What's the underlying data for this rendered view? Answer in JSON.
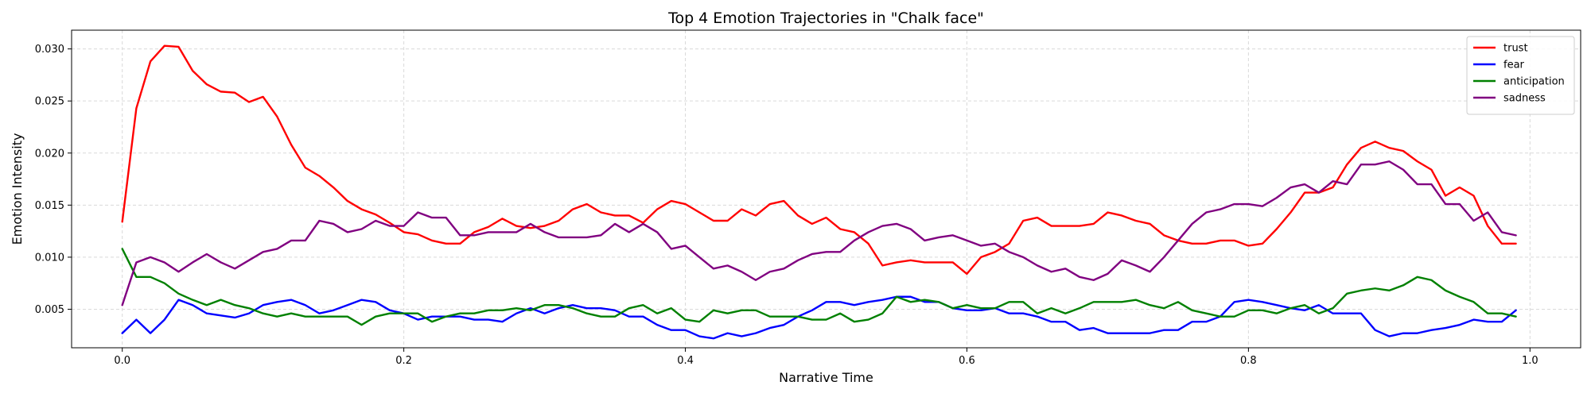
{
  "chart_data": {
    "type": "line",
    "title": "Top 4 Emotion Trajectories in \"Chalk face\"",
    "xlabel": "Narrative Time",
    "ylabel": "Emotion Intensity",
    "xlim": [
      -0.036,
      1.036
    ],
    "ylim": [
      0.0013,
      0.0318
    ],
    "xticks": [
      0.0,
      0.2,
      0.4,
      0.6,
      0.8,
      1.0
    ],
    "xtick_labels": [
      "0.0",
      "0.2",
      "0.4",
      "0.6",
      "0.8",
      "1.0"
    ],
    "yticks": [
      0.005,
      0.01,
      0.015,
      0.02,
      0.025,
      0.03
    ],
    "ytick_labels": [
      "0.005",
      "0.010",
      "0.015",
      "0.020",
      "0.025",
      "0.030"
    ],
    "grid": true,
    "legend_position": "top-right",
    "x": [
      0.0,
      0.01,
      0.02,
      0.03,
      0.04,
      0.05,
      0.06,
      0.07,
      0.08,
      0.09,
      0.1,
      0.11,
      0.12,
      0.13,
      0.14,
      0.15,
      0.16,
      0.17,
      0.18,
      0.19,
      0.2,
      0.21,
      0.22,
      0.23,
      0.24,
      0.25,
      0.26,
      0.27,
      0.28,
      0.29,
      0.3,
      0.31,
      0.32,
      0.33,
      0.34,
      0.35,
      0.36,
      0.37,
      0.38,
      0.39,
      0.4,
      0.41,
      0.42,
      0.43,
      0.44,
      0.45,
      0.46,
      0.47,
      0.48,
      0.49,
      0.5,
      0.51,
      0.52,
      0.53,
      0.54,
      0.55,
      0.56,
      0.57,
      0.58,
      0.59,
      0.6,
      0.61,
      0.62,
      0.63,
      0.64,
      0.65,
      0.66,
      0.67,
      0.68,
      0.69,
      0.7,
      0.71,
      0.72,
      0.73,
      0.74,
      0.75,
      0.76,
      0.77,
      0.78,
      0.79,
      0.8,
      0.81,
      0.82,
      0.83,
      0.84,
      0.85,
      0.86,
      0.87,
      0.88,
      0.89,
      0.9,
      0.91,
      0.92,
      0.93,
      0.94,
      0.95,
      0.96,
      0.97,
      0.98,
      0.99
    ],
    "series": [
      {
        "name": "trust",
        "color": "#ff0000",
        "values": [
          0.0134,
          0.0243,
          0.0288,
          0.0303,
          0.0302,
          0.0279,
          0.0266,
          0.0259,
          0.0258,
          0.0249,
          0.0254,
          0.0235,
          0.0208,
          0.0186,
          0.0178,
          0.0167,
          0.0154,
          0.0146,
          0.0141,
          0.0133,
          0.0124,
          0.0122,
          0.0116,
          0.0113,
          0.0113,
          0.0124,
          0.0129,
          0.0137,
          0.013,
          0.0128,
          0.013,
          0.0135,
          0.0146,
          0.0151,
          0.0143,
          0.014,
          0.014,
          0.0133,
          0.0146,
          0.0154,
          0.0151,
          0.0143,
          0.0135,
          0.0135,
          0.0146,
          0.014,
          0.0151,
          0.0154,
          0.014,
          0.0132,
          0.0138,
          0.0127,
          0.0124,
          0.0113,
          0.0092,
          0.0095,
          0.0097,
          0.0095,
          0.0095,
          0.0095,
          0.0084,
          0.01,
          0.0105,
          0.0113,
          0.0135,
          0.0138,
          0.013,
          0.013,
          0.013,
          0.0132,
          0.0143,
          0.014,
          0.0135,
          0.0132,
          0.0121,
          0.0116,
          0.0113,
          0.0113,
          0.0116,
          0.0116,
          0.0111,
          0.0113,
          0.0127,
          0.0143,
          0.0162,
          0.0162,
          0.0167,
          0.0189,
          0.0205,
          0.0211,
          0.0205,
          0.0202,
          0.0192,
          0.0184,
          0.0159,
          0.0167,
          0.0159,
          0.013,
          0.0113,
          0.0113
        ]
      },
      {
        "name": "fear",
        "color": "#0000ff",
        "values": [
          0.0027,
          0.004,
          0.0027,
          0.004,
          0.0059,
          0.0054,
          0.0046,
          0.0044,
          0.0042,
          0.0046,
          0.0054,
          0.0057,
          0.0059,
          0.0054,
          0.0046,
          0.0049,
          0.0054,
          0.0059,
          0.0057,
          0.0049,
          0.0046,
          0.004,
          0.0043,
          0.0043,
          0.0043,
          0.004,
          0.004,
          0.0038,
          0.0046,
          0.0051,
          0.0046,
          0.0051,
          0.0054,
          0.0051,
          0.0051,
          0.0049,
          0.0043,
          0.0043,
          0.0035,
          0.003,
          0.003,
          0.0024,
          0.0022,
          0.0027,
          0.0024,
          0.0027,
          0.0032,
          0.0035,
          0.0043,
          0.0049,
          0.0057,
          0.0057,
          0.0054,
          0.0057,
          0.0059,
          0.0062,
          0.0062,
          0.0057,
          0.0057,
          0.0051,
          0.0049,
          0.0049,
          0.0051,
          0.0046,
          0.0046,
          0.0043,
          0.0038,
          0.0038,
          0.003,
          0.0032,
          0.0027,
          0.0027,
          0.0027,
          0.0027,
          0.003,
          0.003,
          0.0038,
          0.0038,
          0.0043,
          0.0057,
          0.0059,
          0.0057,
          0.0054,
          0.0051,
          0.0049,
          0.0054,
          0.0046,
          0.0046,
          0.0046,
          0.003,
          0.0024,
          0.0027,
          0.0027,
          0.003,
          0.0032,
          0.0035,
          0.004,
          0.0038,
          0.0038,
          0.0049
        ]
      },
      {
        "name": "anticipation",
        "color": "#008000",
        "values": [
          0.0108,
          0.0081,
          0.0081,
          0.0075,
          0.0065,
          0.0059,
          0.0054,
          0.0059,
          0.0054,
          0.0051,
          0.0046,
          0.0043,
          0.0046,
          0.0043,
          0.0043,
          0.0043,
          0.0043,
          0.0035,
          0.0043,
          0.0046,
          0.0046,
          0.0046,
          0.0038,
          0.0043,
          0.0046,
          0.0046,
          0.0049,
          0.0049,
          0.0051,
          0.0049,
          0.0054,
          0.0054,
          0.0051,
          0.0046,
          0.0043,
          0.0043,
          0.0051,
          0.0054,
          0.0046,
          0.0051,
          0.004,
          0.0038,
          0.0049,
          0.0046,
          0.0049,
          0.0049,
          0.0043,
          0.0043,
          0.0043,
          0.004,
          0.004,
          0.0046,
          0.0038,
          0.004,
          0.0046,
          0.0062,
          0.0057,
          0.0059,
          0.0057,
          0.0051,
          0.0054,
          0.0051,
          0.0051,
          0.0057,
          0.0057,
          0.0046,
          0.0051,
          0.0046,
          0.0051,
          0.0057,
          0.0057,
          0.0057,
          0.0059,
          0.0054,
          0.0051,
          0.0057,
          0.0049,
          0.0046,
          0.0043,
          0.0043,
          0.0049,
          0.0049,
          0.0046,
          0.0051,
          0.0054,
          0.0046,
          0.0051,
          0.0065,
          0.0068,
          0.007,
          0.0068,
          0.0073,
          0.0081,
          0.0078,
          0.0068,
          0.0062,
          0.0057,
          0.0046,
          0.0046,
          0.0043
        ]
      },
      {
        "name": "sadness",
        "color": "#800080",
        "values": [
          0.0054,
          0.0095,
          0.01,
          0.0095,
          0.0086,
          0.0095,
          0.0103,
          0.0095,
          0.0089,
          0.0097,
          0.0105,
          0.0108,
          0.0116,
          0.0116,
          0.0135,
          0.0132,
          0.0124,
          0.0127,
          0.0135,
          0.013,
          0.013,
          0.0143,
          0.0138,
          0.0138,
          0.0121,
          0.0121,
          0.0124,
          0.0124,
          0.0124,
          0.0132,
          0.0124,
          0.0119,
          0.0119,
          0.0119,
          0.0121,
          0.0132,
          0.0124,
          0.0132,
          0.0124,
          0.0108,
          0.0111,
          0.01,
          0.0089,
          0.0092,
          0.0086,
          0.0078,
          0.0086,
          0.0089,
          0.0097,
          0.0103,
          0.0105,
          0.0105,
          0.0116,
          0.0124,
          0.013,
          0.0132,
          0.0127,
          0.0116,
          0.0119,
          0.0121,
          0.0116,
          0.0111,
          0.0113,
          0.0105,
          0.01,
          0.0092,
          0.0086,
          0.0089,
          0.0081,
          0.0078,
          0.0084,
          0.0097,
          0.0092,
          0.0086,
          0.01,
          0.0116,
          0.0132,
          0.0143,
          0.0146,
          0.0151,
          0.0151,
          0.0149,
          0.0157,
          0.0167,
          0.017,
          0.0162,
          0.0173,
          0.017,
          0.0189,
          0.0189,
          0.0192,
          0.0184,
          0.017,
          0.017,
          0.0151,
          0.0151,
          0.0135,
          0.0143,
          0.0124,
          0.0121
        ]
      }
    ]
  }
}
